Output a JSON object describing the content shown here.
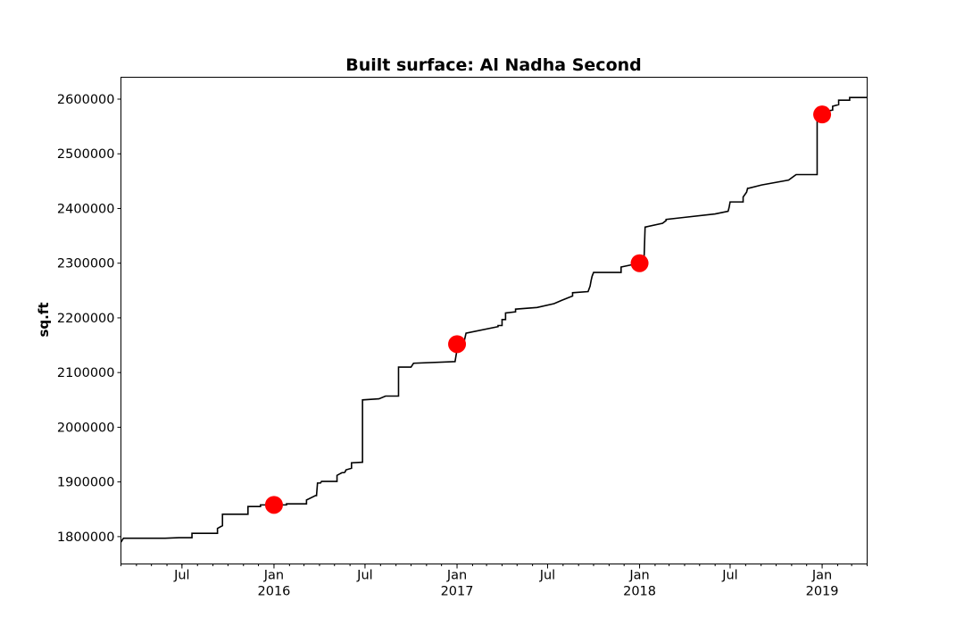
{
  "chart_data": {
    "type": "line",
    "title": "Built surface: Al Nadha Second",
    "xlabel": "",
    "ylabel": "sq.ft",
    "xlim": [
      "2015-03-01",
      "2019-04-01"
    ],
    "ylim": [
      1750000,
      2640000
    ],
    "grid": false,
    "legend": "none",
    "y_ticks": [
      1800000,
      1900000,
      2000000,
      2100000,
      2200000,
      2300000,
      2400000,
      2500000,
      2600000
    ],
    "x_ticks_major": [
      {
        "date": "2015-07-01",
        "label": "Jul",
        "sublabel": ""
      },
      {
        "date": "2016-01-01",
        "label": "Jan",
        "sublabel": "2016"
      },
      {
        "date": "2016-07-01",
        "label": "Jul",
        "sublabel": ""
      },
      {
        "date": "2017-01-01",
        "label": "Jan",
        "sublabel": "2017"
      },
      {
        "date": "2017-07-01",
        "label": "Jul",
        "sublabel": ""
      },
      {
        "date": "2018-01-01",
        "label": "Jan",
        "sublabel": "2018"
      },
      {
        "date": "2018-07-01",
        "label": "Jul",
        "sublabel": ""
      },
      {
        "date": "2019-01-01",
        "label": "Jan",
        "sublabel": "2019"
      }
    ],
    "series": [
      {
        "line_color": "#000000",
        "x": [
          "2015-03-01",
          "2015-03-06",
          "2015-05-28",
          "2015-05-28",
          "2015-06-25",
          "2015-06-25",
          "2015-07-21",
          "2015-07-21",
          "2015-07-25",
          "2015-07-27",
          "2015-07-29",
          "2015-09-10",
          "2015-09-10",
          "2015-09-20",
          "2015-09-20",
          "2015-10-10",
          "2015-10-10",
          "2015-11-10",
          "2015-11-10",
          "2015-11-12",
          "2015-12-05",
          "2015-12-05",
          "2016-01-15",
          "2016-01-15",
          "2016-01-22",
          "2016-01-24",
          "2016-01-26",
          "2016-01-26",
          "2016-02-14",
          "2016-02-14",
          "2016-03-06",
          "2016-03-06",
          "2016-03-24",
          "2016-03-26",
          "2016-03-28",
          "2016-04-03",
          "2016-04-05",
          "2016-04-07",
          "2016-05-06",
          "2016-05-06",
          "2016-05-16",
          "2016-05-16",
          "2016-05-20",
          "2016-05-22",
          "2016-05-24",
          "2016-06-04",
          "2016-06-04",
          "2016-06-26",
          "2016-06-26",
          "2016-07-29",
          "2016-07-29",
          "2016-08-11",
          "2016-08-11",
          "2016-09-06",
          "2016-09-06",
          "2016-10-01",
          "2016-10-06",
          "2016-12-28",
          "2017-01-01",
          "2017-01-06",
          "2017-01-08",
          "2017-01-14",
          "2017-01-16",
          "2017-01-19",
          "2017-03-24",
          "2017-03-24",
          "2017-04-01",
          "2017-04-01",
          "2017-04-08",
          "2017-04-08",
          "2017-04-28",
          "2017-04-28",
          "2017-06-10",
          "2017-06-10",
          "2017-07-14",
          "2017-07-14",
          "2017-07-29",
          "2017-07-29",
          "2017-08-20",
          "2017-08-20",
          "2017-09-20",
          "2017-09-24",
          "2017-09-26",
          "2017-09-28",
          "2017-10-01",
          "2017-11-25",
          "2017-11-25",
          "2018-01-01",
          "2018-01-10",
          "2018-01-12",
          "2018-01-12",
          "2018-02-16",
          "2018-02-16",
          "2018-02-23",
          "2018-02-23",
          "2018-03-24",
          "2018-03-24",
          "2018-06-01",
          "2018-06-01",
          "2018-06-27",
          "2018-06-29",
          "2018-07-01",
          "2018-07-27",
          "2018-07-27",
          "2018-08-03",
          "2018-08-05",
          "2018-08-07",
          "2018-09-02",
          "2018-09-02",
          "2018-10-26",
          "2018-10-26",
          "2018-11-10",
          "2018-11-10",
          "2018-12-22",
          "2018-12-22",
          "2018-12-26",
          "2019-01-01",
          "2019-01-08",
          "2019-01-10",
          "2019-01-10",
          "2019-01-22",
          "2019-01-22",
          "2019-02-03",
          "2019-02-03",
          "2019-02-25",
          "2019-02-25",
          "2019-04-01"
        ],
        "y": [
          1790000,
          1797000,
          1797000,
          1797000,
          1798000,
          1798000,
          1798000,
          1806000,
          1806000,
          1806000,
          1806000,
          1806000,
          1815000,
          1820000,
          1841000,
          1841000,
          1841000,
          1841000,
          1855000,
          1855000,
          1855000,
          1858000,
          1858000,
          1858000,
          1858000,
          1858000,
          1858000,
          1860000,
          1860000,
          1860000,
          1860000,
          1867000,
          1875000,
          1875000,
          1898000,
          1898000,
          1901000,
          1901000,
          1901000,
          1912000,
          1917000,
          1917000,
          1917000,
          1918000,
          1922000,
          1925000,
          1935000,
          1936000,
          2050000,
          2052000,
          2052000,
          2057000,
          2057000,
          2057000,
          2110000,
          2110000,
          2117000,
          2120000,
          2142000,
          2144000,
          2145000,
          2146000,
          2160000,
          2172000,
          2184000,
          2186000,
          2186000,
          2197000,
          2197000,
          2209000,
          2211000,
          2216000,
          2219000,
          2219000,
          2226000,
          2226000,
          2232000,
          2232000,
          2240000,
          2246000,
          2248000,
          2258000,
          2268000,
          2276000,
          2283000,
          2283000,
          2293000,
          2300000,
          2309000,
          2366000,
          2366000,
          2373000,
          2373000,
          2378000,
          2380000,
          2383000,
          2383000,
          2390000,
          2390000,
          2395000,
          2402000,
          2412000,
          2412000,
          2421000,
          2430000,
          2437000,
          2437000,
          2443000,
          2443000,
          2452000,
          2452000,
          2462000,
          2462000,
          2462000,
          2561000,
          2565000,
          2565000,
          2570000,
          2575000,
          2578000,
          2580000,
          2587000,
          2590000,
          2598000,
          2598000,
          2603000,
          2603000
        ]
      },
      {
        "marker_color": "#ff0000",
        "x": [
          "2016-01-01",
          "2017-01-01",
          "2018-01-01",
          "2019-01-01"
        ],
        "y": [
          1858000,
          2152000,
          2300000,
          2572000
        ]
      }
    ]
  }
}
